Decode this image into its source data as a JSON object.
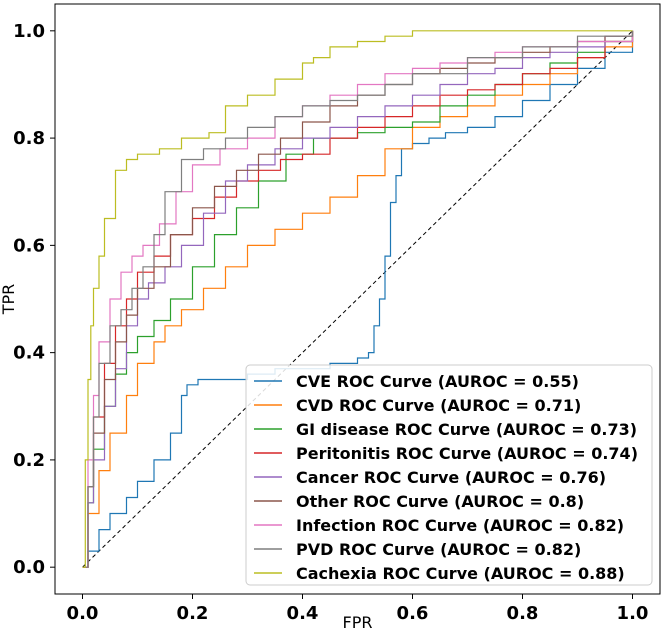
{
  "chart_data": {
    "type": "line",
    "xlabel": "FPR",
    "ylabel": "TPR",
    "xlim": [
      -0.05,
      1.05
    ],
    "ylim": [
      -0.05,
      1.05
    ],
    "x_ticks": [
      0.0,
      0.2,
      0.4,
      0.6,
      0.8,
      1.0
    ],
    "x_tick_labels": [
      "0.0",
      "0.2",
      "0.4",
      "0.6",
      "0.8",
      "1.0"
    ],
    "y_ticks": [
      0.0,
      0.2,
      0.4,
      0.6,
      0.8,
      1.0
    ],
    "y_tick_labels": [
      "0.0",
      "0.2",
      "0.4",
      "0.6",
      "0.8",
      "1.0"
    ],
    "grid": false,
    "legend_position": "lower-right",
    "reference_line": {
      "x": [
        0,
        1
      ],
      "y": [
        0,
        1
      ],
      "style": "dashed",
      "color": "#000000"
    },
    "series": [
      {
        "name": "CVE ROC Curve (AUROC = 0.55)",
        "color": "#1f77b4",
        "x": [
          0,
          0.01,
          0.03,
          0.05,
          0.08,
          0.1,
          0.13,
          0.16,
          0.18,
          0.19,
          0.21,
          0.25,
          0.3,
          0.35,
          0.4,
          0.45,
          0.5,
          0.52,
          0.53,
          0.54,
          0.55,
          0.56,
          0.57,
          0.58,
          0.6,
          0.63,
          0.66,
          0.7,
          0.75,
          0.8,
          0.85,
          0.9,
          0.95,
          1.0
        ],
        "y": [
          0,
          0.03,
          0.07,
          0.1,
          0.13,
          0.16,
          0.2,
          0.25,
          0.32,
          0.34,
          0.35,
          0.35,
          0.36,
          0.37,
          0.37,
          0.38,
          0.39,
          0.4,
          0.45,
          0.5,
          0.58,
          0.68,
          0.73,
          0.78,
          0.79,
          0.8,
          0.81,
          0.82,
          0.84,
          0.87,
          0.9,
          0.93,
          0.96,
          1.0
        ]
      },
      {
        "name": "CVD ROC Curve (AUROC = 0.71)",
        "color": "#ff7f0e",
        "x": [
          0,
          0.01,
          0.03,
          0.05,
          0.08,
          0.1,
          0.13,
          0.15,
          0.18,
          0.22,
          0.26,
          0.3,
          0.35,
          0.4,
          0.45,
          0.5,
          0.55,
          0.6,
          0.65,
          0.7,
          0.75,
          0.8,
          0.85,
          0.9,
          0.95,
          1.0
        ],
        "y": [
          0,
          0.1,
          0.18,
          0.25,
          0.32,
          0.38,
          0.42,
          0.45,
          0.48,
          0.52,
          0.56,
          0.6,
          0.63,
          0.66,
          0.69,
          0.73,
          0.78,
          0.82,
          0.84,
          0.86,
          0.88,
          0.9,
          0.92,
          0.95,
          0.97,
          1.0
        ]
      },
      {
        "name": "GI disease ROC Curve (AUROC = 0.73)",
        "color": "#2ca02c",
        "x": [
          0,
          0.01,
          0.02,
          0.04,
          0.06,
          0.08,
          0.1,
          0.13,
          0.16,
          0.2,
          0.24,
          0.28,
          0.32,
          0.37,
          0.42,
          0.5,
          0.55,
          0.6,
          0.65,
          0.7,
          0.75,
          0.8,
          0.85,
          0.9,
          0.95,
          1.0
        ],
        "y": [
          0,
          0.12,
          0.22,
          0.3,
          0.36,
          0.4,
          0.43,
          0.46,
          0.5,
          0.56,
          0.62,
          0.67,
          0.72,
          0.77,
          0.8,
          0.81,
          0.82,
          0.83,
          0.86,
          0.88,
          0.9,
          0.92,
          0.94,
          0.96,
          0.98,
          1.0
        ]
      },
      {
        "name": "Peritonitis ROC Curve (AUROC = 0.74)",
        "color": "#d62728",
        "x": [
          0,
          0.01,
          0.02,
          0.04,
          0.06,
          0.08,
          0.1,
          0.13,
          0.16,
          0.2,
          0.24,
          0.28,
          0.32,
          0.36,
          0.4,
          0.45,
          0.5,
          0.55,
          0.6,
          0.65,
          0.7,
          0.75,
          0.8,
          0.85,
          0.9,
          0.95,
          1.0
        ],
        "y": [
          0,
          0.15,
          0.28,
          0.38,
          0.45,
          0.5,
          0.55,
          0.58,
          0.62,
          0.65,
          0.69,
          0.72,
          0.74,
          0.76,
          0.77,
          0.8,
          0.82,
          0.84,
          0.86,
          0.88,
          0.89,
          0.9,
          0.92,
          0.93,
          0.95,
          0.98,
          1.0
        ]
      },
      {
        "name": "Cancer ROC Curve (AUROC = 0.76)",
        "color": "#9467bd",
        "x": [
          0,
          0.01,
          0.02,
          0.04,
          0.06,
          0.08,
          0.1,
          0.12,
          0.15,
          0.18,
          0.22,
          0.26,
          0.3,
          0.35,
          0.4,
          0.45,
          0.5,
          0.55,
          0.6,
          0.65,
          0.7,
          0.75,
          0.8,
          0.85,
          0.9,
          0.95,
          1.0
        ],
        "y": [
          0,
          0.12,
          0.2,
          0.3,
          0.37,
          0.45,
          0.5,
          0.53,
          0.56,
          0.6,
          0.66,
          0.72,
          0.75,
          0.78,
          0.8,
          0.82,
          0.84,
          0.86,
          0.88,
          0.9,
          0.92,
          0.93,
          0.95,
          0.96,
          0.97,
          0.99,
          1.0
        ]
      },
      {
        "name": "Other ROC Curve (AUROC = 0.8)",
        "color": "#8c564b",
        "x": [
          0,
          0.01,
          0.02,
          0.04,
          0.06,
          0.08,
          0.1,
          0.13,
          0.16,
          0.2,
          0.24,
          0.28,
          0.32,
          0.36,
          0.4,
          0.45,
          0.5,
          0.55,
          0.6,
          0.65,
          0.7,
          0.75,
          0.8,
          0.85,
          0.9,
          0.95,
          1.0
        ],
        "y": [
          0,
          0.15,
          0.25,
          0.35,
          0.42,
          0.47,
          0.52,
          0.56,
          0.62,
          0.67,
          0.71,
          0.74,
          0.77,
          0.8,
          0.83,
          0.86,
          0.88,
          0.9,
          0.92,
          0.93,
          0.94,
          0.95,
          0.96,
          0.97,
          0.98,
          0.99,
          1.0
        ]
      },
      {
        "name": "Infection ROC Curve (AUROC = 0.82)",
        "color": "#e377c2",
        "x": [
          0,
          0.01,
          0.02,
          0.03,
          0.05,
          0.07,
          0.09,
          0.11,
          0.14,
          0.17,
          0.2,
          0.25,
          0.3,
          0.35,
          0.4,
          0.45,
          0.5,
          0.55,
          0.6,
          0.65,
          0.7,
          0.75,
          0.8,
          0.9,
          1.0
        ],
        "y": [
          0,
          0.2,
          0.32,
          0.42,
          0.5,
          0.55,
          0.58,
          0.6,
          0.64,
          0.7,
          0.75,
          0.78,
          0.8,
          0.84,
          0.86,
          0.88,
          0.9,
          0.92,
          0.93,
          0.94,
          0.95,
          0.96,
          0.97,
          0.98,
          1.0
        ]
      },
      {
        "name": "PVD ROC Curve (AUROC = 0.82)",
        "color": "#7f7f7f",
        "x": [
          0,
          0.01,
          0.02,
          0.03,
          0.05,
          0.07,
          0.09,
          0.11,
          0.13,
          0.15,
          0.18,
          0.22,
          0.26,
          0.3,
          0.35,
          0.4,
          0.45,
          0.5,
          0.55,
          0.6,
          0.7,
          0.8,
          0.9,
          1.0
        ],
        "y": [
          0,
          0.15,
          0.28,
          0.38,
          0.45,
          0.48,
          0.52,
          0.56,
          0.62,
          0.7,
          0.76,
          0.78,
          0.8,
          0.82,
          0.84,
          0.86,
          0.87,
          0.88,
          0.9,
          0.92,
          0.95,
          0.97,
          0.99,
          1.0
        ]
      },
      {
        "name": "Cachexia ROC Curve (AUROC = 0.88)",
        "color": "#bcbd22",
        "x": [
          0,
          0.005,
          0.01,
          0.015,
          0.02,
          0.03,
          0.04,
          0.06,
          0.08,
          0.1,
          0.14,
          0.18,
          0.2,
          0.23,
          0.26,
          0.3,
          0.35,
          0.4,
          0.42,
          0.45,
          0.5,
          0.55,
          0.6,
          0.7,
          0.8,
          0.9,
          1.0
        ],
        "y": [
          0,
          0.2,
          0.35,
          0.45,
          0.52,
          0.58,
          0.65,
          0.74,
          0.76,
          0.77,
          0.78,
          0.8,
          0.8,
          0.81,
          0.86,
          0.88,
          0.91,
          0.94,
          0.95,
          0.97,
          0.98,
          0.99,
          1.0,
          1.0,
          1.0,
          1.0,
          1.0
        ]
      }
    ]
  }
}
